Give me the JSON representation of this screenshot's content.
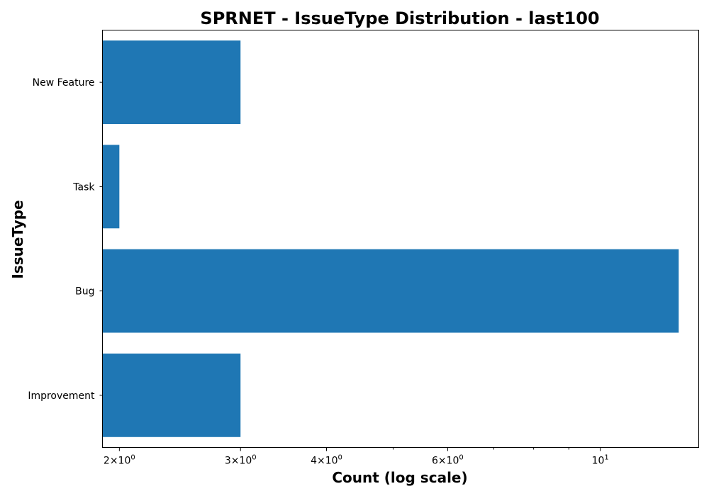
{
  "chart_data": {
    "type": "bar",
    "orientation": "horizontal",
    "title": "SPRNET - IssueType Distribution - last100",
    "xlabel": "Count (log scale)",
    "ylabel": "IssueType",
    "x_scale": "log",
    "xlim": [
      1.89,
      13.9
    ],
    "categories": [
      "Improvement",
      "Bug",
      "Task",
      "New Feature"
    ],
    "values": [
      3,
      13,
      2,
      3
    ],
    "bar_color": "#1f77b4",
    "grid": false,
    "legend": "none",
    "x_major_ticks": [
      {
        "value": 2,
        "base": "2×10",
        "exp": "0"
      },
      {
        "value": 3,
        "base": "3×10",
        "exp": "0"
      },
      {
        "value": 4,
        "base": "4×10",
        "exp": "0"
      },
      {
        "value": 6,
        "base": "6×10",
        "exp": "0"
      },
      {
        "value": 10,
        "base": "10",
        "exp": "1"
      }
    ],
    "x_minor_ticks": [
      5,
      7,
      8,
      9
    ]
  }
}
